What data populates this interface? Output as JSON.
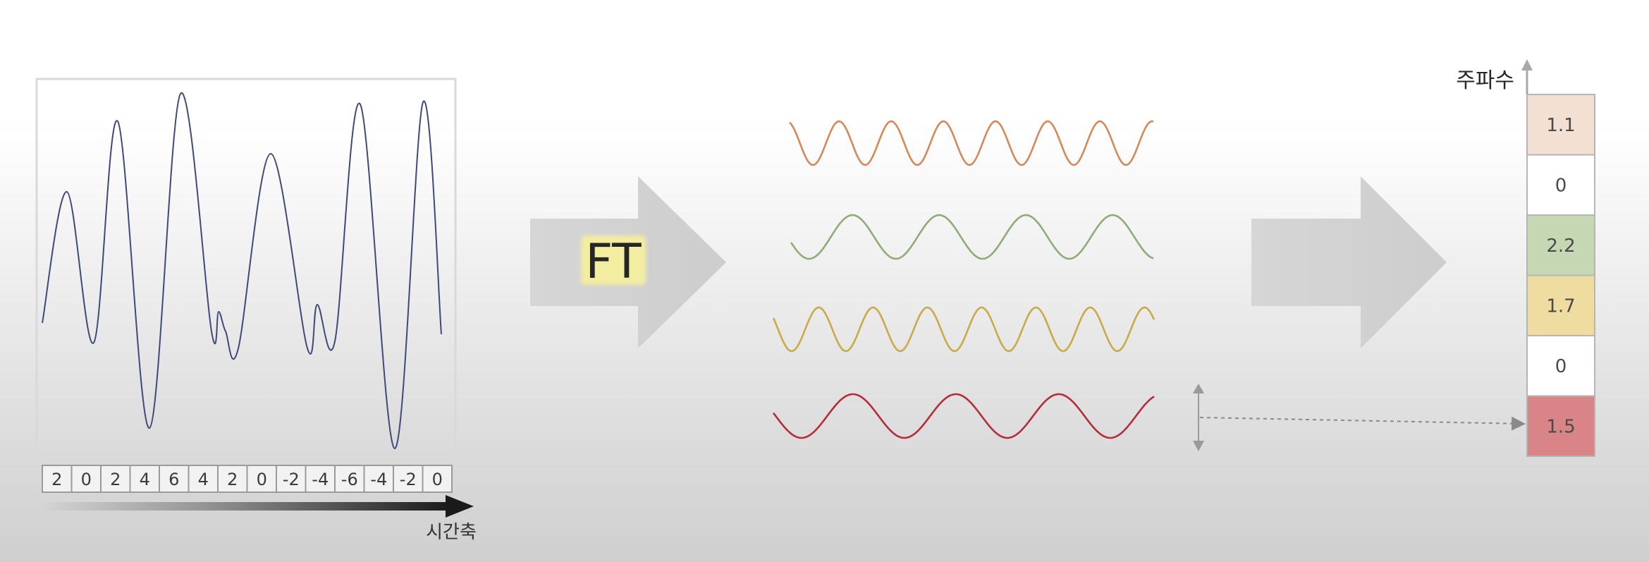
{
  "transform_label": "FT",
  "time_samples": [
    "2",
    "0",
    "2",
    "4",
    "6",
    "4",
    "2",
    "0",
    "-2",
    "-4",
    "-6",
    "-4",
    "-2",
    "0"
  ],
  "time_axis_label": "시간축",
  "frequency_axis_label": "주파수",
  "frequency_values": [
    {
      "value": "1.1",
      "color": "#f4dfd3"
    },
    {
      "value": "0",
      "color": "#ffffff"
    },
    {
      "value": "2.2",
      "color": "#c5d8b3"
    },
    {
      "value": "1.7",
      "color": "#efdca0"
    },
    {
      "value": "0",
      "color": "#ffffff"
    },
    {
      "value": "1.5",
      "color": "#d98486"
    }
  ],
  "waves": [
    {
      "name": "orange-wave",
      "color": "#d4895a"
    },
    {
      "name": "green-wave",
      "color": "#8fac74"
    },
    {
      "name": "yellow-wave",
      "color": "#c9aa48"
    },
    {
      "name": "red-wave",
      "color": "#b32d3a"
    }
  ],
  "colors": {
    "signal": "#3d4a7a",
    "arrow": "#d3d3d3",
    "ft_highlight": "#f2eda0",
    "axis": "#a8a8a8"
  }
}
